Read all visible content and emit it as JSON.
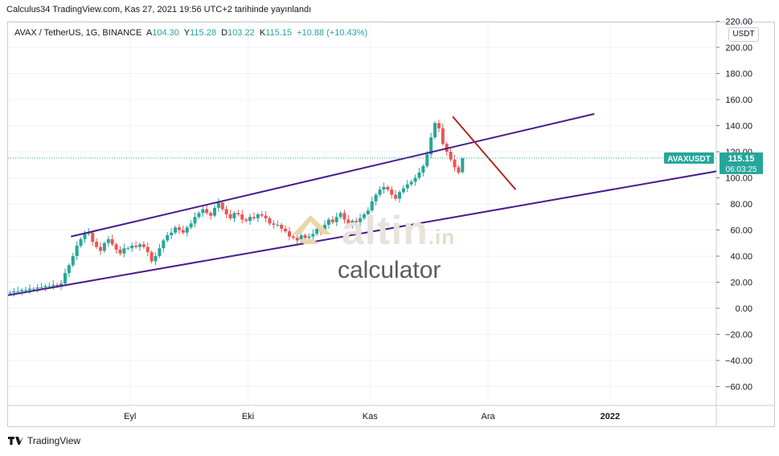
{
  "caption": "Calculus34 TradingView.com, Kas 27, 2021 19:56 UTC+2 tarihinde yayınlandı",
  "legend": {
    "symbol": "AVAX / TetherUS, 1G, BINANCE",
    "o_label": "A",
    "o_value": "104.30",
    "h_label": "Y",
    "h_value": "115.28",
    "l_label": "D",
    "l_value": "103.22",
    "c_label": "K",
    "c_value": "115.15",
    "change": "+10.88 (+10.43%)"
  },
  "unit": "USDT",
  "price_tag": {
    "symbol": "AVAXUSDT",
    "price": "115.15",
    "countdown": "06:03:25",
    "value": 115.15,
    "color": "#26a69a"
  },
  "footer": {
    "brand": "TradingView"
  },
  "watermark": {
    "brand": "altin",
    "domain": ".in",
    "sub": "calculator"
  },
  "colors": {
    "up": "#26a69a",
    "down": "#ef5350",
    "channel": "#4a1c8c",
    "trend": "#b22222"
  },
  "chart_data": {
    "type": "candlestick",
    "ylim": [
      -70,
      220
    ],
    "y_ticks": [
      {
        "v": -60,
        "label": "−60.00"
      },
      {
        "v": -40,
        "label": "−40.00"
      },
      {
        "v": -20,
        "label": "−20.00"
      },
      {
        "v": 0,
        "label": "0.00"
      },
      {
        "v": 20,
        "label": "20.00"
      },
      {
        "v": 40,
        "label": "40.00"
      },
      {
        "v": 60,
        "label": "60.00"
      },
      {
        "v": 80,
        "label": "80.00"
      },
      {
        "v": 100,
        "label": "100.00"
      },
      {
        "v": 120,
        "label": "120.00"
      },
      {
        "v": 140,
        "label": "140.00"
      },
      {
        "v": 160,
        "label": "160.00"
      },
      {
        "v": 180,
        "label": "180.00"
      },
      {
        "v": 200,
        "label": "200.00"
      },
      {
        "v": 220,
        "label": "220.00"
      }
    ],
    "x_range_days": [
      0,
      180
    ],
    "x_ticks": [
      {
        "day": 31,
        "label": "Eyl"
      },
      {
        "day": 61,
        "label": "Eki"
      },
      {
        "day": 92,
        "label": "Kas"
      },
      {
        "day": 122,
        "label": "Ara"
      },
      {
        "day": 153,
        "label": "2022",
        "bold": true
      }
    ],
    "candles_close": [
      12,
      13,
      13,
      14,
      14,
      15,
      15,
      16,
      16,
      17,
      17,
      18,
      17,
      19,
      27,
      33,
      40,
      48,
      53,
      57,
      58,
      51,
      47,
      44,
      50,
      53,
      49,
      45,
      42,
      46,
      46,
      48,
      47,
      49,
      47,
      43,
      36,
      40,
      46,
      52,
      56,
      58,
      62,
      60,
      58,
      62,
      65,
      70,
      73,
      76,
      73,
      71,
      77,
      81,
      76,
      72,
      69,
      73,
      72,
      68,
      67,
      70,
      69,
      72,
      71,
      69,
      65,
      64,
      64,
      61,
      59,
      55,
      54,
      52,
      56,
      54,
      55,
      57,
      61,
      59,
      64,
      68,
      66,
      70,
      73,
      68,
      64,
      67,
      66,
      69,
      72,
      75,
      82,
      87,
      91,
      93,
      91,
      87,
      84,
      89,
      92,
      95,
      97,
      100,
      104,
      109,
      118,
      131,
      142,
      138,
      126,
      120,
      114,
      108,
      104,
      115.15
    ],
    "channel_upper": [
      {
        "day": 16,
        "price": 55
      },
      {
        "day": 149,
        "price": 149
      }
    ],
    "channel_lower": [
      {
        "day": 0,
        "price": 10
      },
      {
        "day": 180,
        "price": 105
      }
    ],
    "trendline": [
      {
        "day": 113,
        "price": 147
      },
      {
        "day": 129,
        "price": 91
      }
    ],
    "last_price": 115.15
  }
}
